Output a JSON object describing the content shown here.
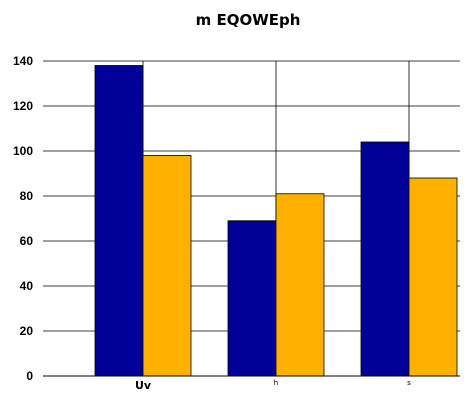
{
  "chart_data": {
    "type": "bar",
    "title": "m EQOWEph",
    "xlabel": "",
    "ylabel": "",
    "categories": [
      "Uv",
      "h",
      "s"
    ],
    "series": [
      {
        "color": "#000099",
        "values": [
          138,
          69,
          104
        ]
      },
      {
        "color": "#ffb000",
        "values": [
          98,
          81,
          88
        ]
      }
    ],
    "ylim": [
      0,
      140
    ],
    "yticks": [
      0,
      20,
      40,
      60,
      80,
      100,
      120,
      140
    ],
    "grid": true,
    "legend": "none"
  }
}
